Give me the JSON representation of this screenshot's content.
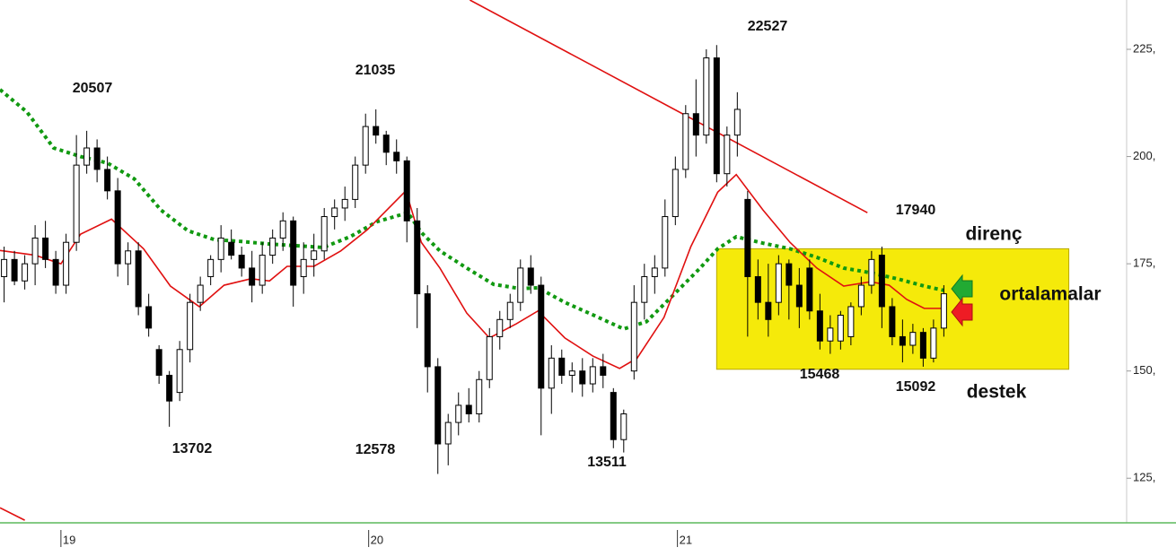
{
  "chart_data": {
    "type": "candlestick",
    "ylim": [
      114.6,
      236.5
    ],
    "yticks": [
      {
        "value": 225,
        "label": "225,"
      },
      {
        "value": 200,
        "label": "200,"
      },
      {
        "value": 175,
        "label": "175,"
      },
      {
        "value": 150,
        "label": "150,"
      },
      {
        "value": 125,
        "label": "125,"
      }
    ],
    "xlim": [
      -0.4,
      108.7
    ],
    "xticks": [
      {
        "value": 5.5,
        "label": "19"
      },
      {
        "value": 35.3,
        "label": "20"
      },
      {
        "value": 65.2,
        "label": "21"
      }
    ],
    "up_color": "#ffffff",
    "down_color": "#000000",
    "ohlc": [
      [
        172,
        179,
        166,
        176
      ],
      [
        176,
        178,
        170,
        171
      ],
      [
        171,
        177,
        169,
        175
      ],
      [
        175,
        184,
        170,
        181
      ],
      [
        181,
        185,
        174,
        176
      ],
      [
        176,
        178,
        168,
        170
      ],
      [
        170,
        182,
        168,
        180
      ],
      [
        180,
        205,
        178,
        198
      ],
      [
        198,
        206,
        196,
        202
      ],
      [
        202,
        204,
        194,
        197
      ],
      [
        197,
        200,
        190,
        192
      ],
      [
        192,
        195,
        172,
        175
      ],
      [
        175,
        180,
        170,
        178
      ],
      [
        178,
        180,
        163,
        165
      ],
      [
        165,
        168,
        158,
        160
      ],
      [
        155,
        156,
        147,
        149
      ],
      [
        149,
        150,
        137,
        143
      ],
      [
        145,
        157,
        143,
        155
      ],
      [
        155,
        168,
        152,
        166
      ],
      [
        166,
        172,
        164,
        170
      ],
      [
        172,
        177,
        170,
        176
      ],
      [
        176,
        184,
        173,
        181
      ],
      [
        180,
        183,
        176,
        177
      ],
      [
        177,
        179,
        172,
        174
      ],
      [
        174,
        178,
        166,
        170
      ],
      [
        170,
        180,
        168,
        177
      ],
      [
        177,
        183,
        175,
        181
      ],
      [
        181,
        187,
        178,
        185
      ],
      [
        185,
        186,
        165,
        170
      ],
      [
        172,
        180,
        168,
        176
      ],
      [
        176,
        182,
        172,
        178
      ],
      [
        178,
        188,
        176,
        186
      ],
      [
        186,
        190,
        183,
        188
      ],
      [
        188,
        193,
        185,
        190
      ],
      [
        190,
        200,
        188,
        198
      ],
      [
        198,
        210,
        196,
        207
      ],
      [
        207,
        211,
        203,
        205
      ],
      [
        205,
        206,
        198,
        201
      ],
      [
        201,
        204,
        196,
        199
      ],
      [
        199,
        200,
        180,
        185
      ],
      [
        185,
        188,
        160,
        168
      ],
      [
        168,
        170,
        145,
        151
      ],
      [
        151,
        153,
        126,
        133
      ],
      [
        133,
        140,
        128,
        138
      ],
      [
        138,
        145,
        135,
        142
      ],
      [
        142,
        146,
        138,
        140
      ],
      [
        140,
        150,
        138,
        148
      ],
      [
        148,
        160,
        146,
        158
      ],
      [
        158,
        164,
        155,
        162
      ],
      [
        162,
        168,
        160,
        166
      ],
      [
        166,
        176,
        164,
        174
      ],
      [
        174,
        177,
        168,
        170
      ],
      [
        170,
        172,
        135,
        146
      ],
      [
        146,
        156,
        140,
        153
      ],
      [
        153,
        155,
        147,
        149
      ],
      [
        149,
        152,
        145,
        150
      ],
      [
        150,
        153,
        144,
        147
      ],
      [
        147,
        153,
        145,
        151
      ],
      [
        151,
        154,
        146,
        149
      ],
      [
        145,
        146,
        132,
        134
      ],
      [
        134,
        141,
        131,
        140
      ],
      [
        150,
        170,
        148,
        166
      ],
      [
        166,
        175,
        162,
        172
      ],
      [
        172,
        177,
        168,
        174
      ],
      [
        174,
        190,
        172,
        186
      ],
      [
        186,
        200,
        184,
        197
      ],
      [
        197,
        212,
        195,
        210
      ],
      [
        210,
        218,
        200,
        205
      ],
      [
        205,
        225,
        203,
        223
      ],
      [
        223,
        226,
        194,
        196
      ],
      [
        196,
        207,
        193,
        205
      ],
      [
        205,
        215,
        200,
        211
      ],
      [
        190,
        192,
        158,
        172
      ],
      [
        172,
        176,
        162,
        166
      ],
      [
        166,
        175,
        158,
        162
      ],
      [
        166,
        177,
        163,
        175
      ],
      [
        175,
        176,
        162,
        170
      ],
      [
        170,
        174,
        160,
        165
      ],
      [
        174,
        176,
        162,
        164
      ],
      [
        164,
        168,
        155,
        157
      ],
      [
        157,
        163,
        154,
        160
      ],
      [
        157,
        164,
        155,
        163
      ],
      [
        158,
        166,
        156,
        165
      ],
      [
        165,
        172,
        163,
        170
      ],
      [
        170,
        178,
        168,
        176
      ],
      [
        177,
        179,
        160,
        165
      ],
      [
        165,
        167,
        156,
        158
      ],
      [
        158,
        162,
        152,
        156
      ],
      [
        156,
        161,
        154,
        159
      ],
      [
        159,
        160,
        151,
        153
      ],
      [
        153,
        162,
        152,
        160
      ],
      [
        160,
        170,
        158,
        168
      ]
    ],
    "series": [
      {
        "color": "#119911",
        "dash": "dotted",
        "x": [
          -0.4,
          2.2,
          4.8,
          7.4,
          10,
          12.6,
          15.2,
          17.8,
          20.4,
          23,
          25.7,
          28.3,
          30.9,
          33.5,
          36.1,
          39.1,
          40.4,
          42.2,
          44.8,
          47.4,
          50,
          51.7,
          54.3,
          57,
          60,
          62.2,
          64.8,
          67.4,
          69.1,
          70.9,
          73.5,
          76.1,
          78.7,
          81.3,
          83.9,
          86.5,
          89.1,
          91
        ],
        "values": [
          215.6,
          210.4,
          202,
          200,
          198.5,
          194.8,
          187.5,
          182.7,
          180.6,
          180.2,
          179.6,
          179.2,
          178.8,
          181.3,
          184.8,
          186.9,
          182.3,
          178,
          174,
          170.2,
          169.2,
          169.4,
          166,
          163.1,
          159.8,
          161.5,
          167.7,
          174,
          178.5,
          181.3,
          179.8,
          178.5,
          176.5,
          174,
          172.9,
          171.5,
          169.8,
          168.8
        ]
      },
      {
        "color": "#e01010",
        "dash": "solid",
        "x": [
          -0.4,
          3,
          5.5,
          7.4,
          10.4,
          13.5,
          16.1,
          18.9,
          21.3,
          23.9,
          25.7,
          27.4,
          30,
          32.6,
          35.2,
          38.9,
          40.4,
          42.2,
          44.8,
          47,
          49.6,
          51.7,
          54.3,
          57,
          59.6,
          61.3,
          63.9,
          66.5,
          69.1,
          70.9,
          73.5,
          76.1,
          78.7,
          81.3,
          83.9,
          85.7,
          87.4,
          89.1,
          91
        ],
        "values": [
          178.1,
          177,
          175,
          181.9,
          185.4,
          178.5,
          169.8,
          165,
          170,
          171.5,
          171,
          174.4,
          174.4,
          178,
          183,
          192,
          180,
          174,
          163.5,
          157.7,
          161,
          164,
          157.7,
          153.5,
          150.6,
          153,
          162.5,
          179,
          191.7,
          195.8,
          187.5,
          180,
          174,
          169.8,
          170.8,
          170,
          166.7,
          164.6,
          164.6
        ]
      }
    ],
    "trendlines": [
      {
        "color": "#e01010",
        "x": [
          45.1,
          83.6
        ],
        "values": [
          236.5,
          186.9
        ]
      },
      {
        "color": "#e01010",
        "x": [
          -0.4,
          2
        ],
        "values": [
          118.1,
          115.2
        ]
      }
    ],
    "box": {
      "color": "#f5ea0a",
      "x": [
        69,
        103.1
      ],
      "values": [
        178.5,
        150.4
      ]
    },
    "annotations": [
      "20507",
      "21035",
      "22527",
      "13702",
      "12578",
      "13511",
      "17940",
      "15468",
      "15092",
      "direnç",
      "ortalamalar",
      "destek"
    ]
  }
}
